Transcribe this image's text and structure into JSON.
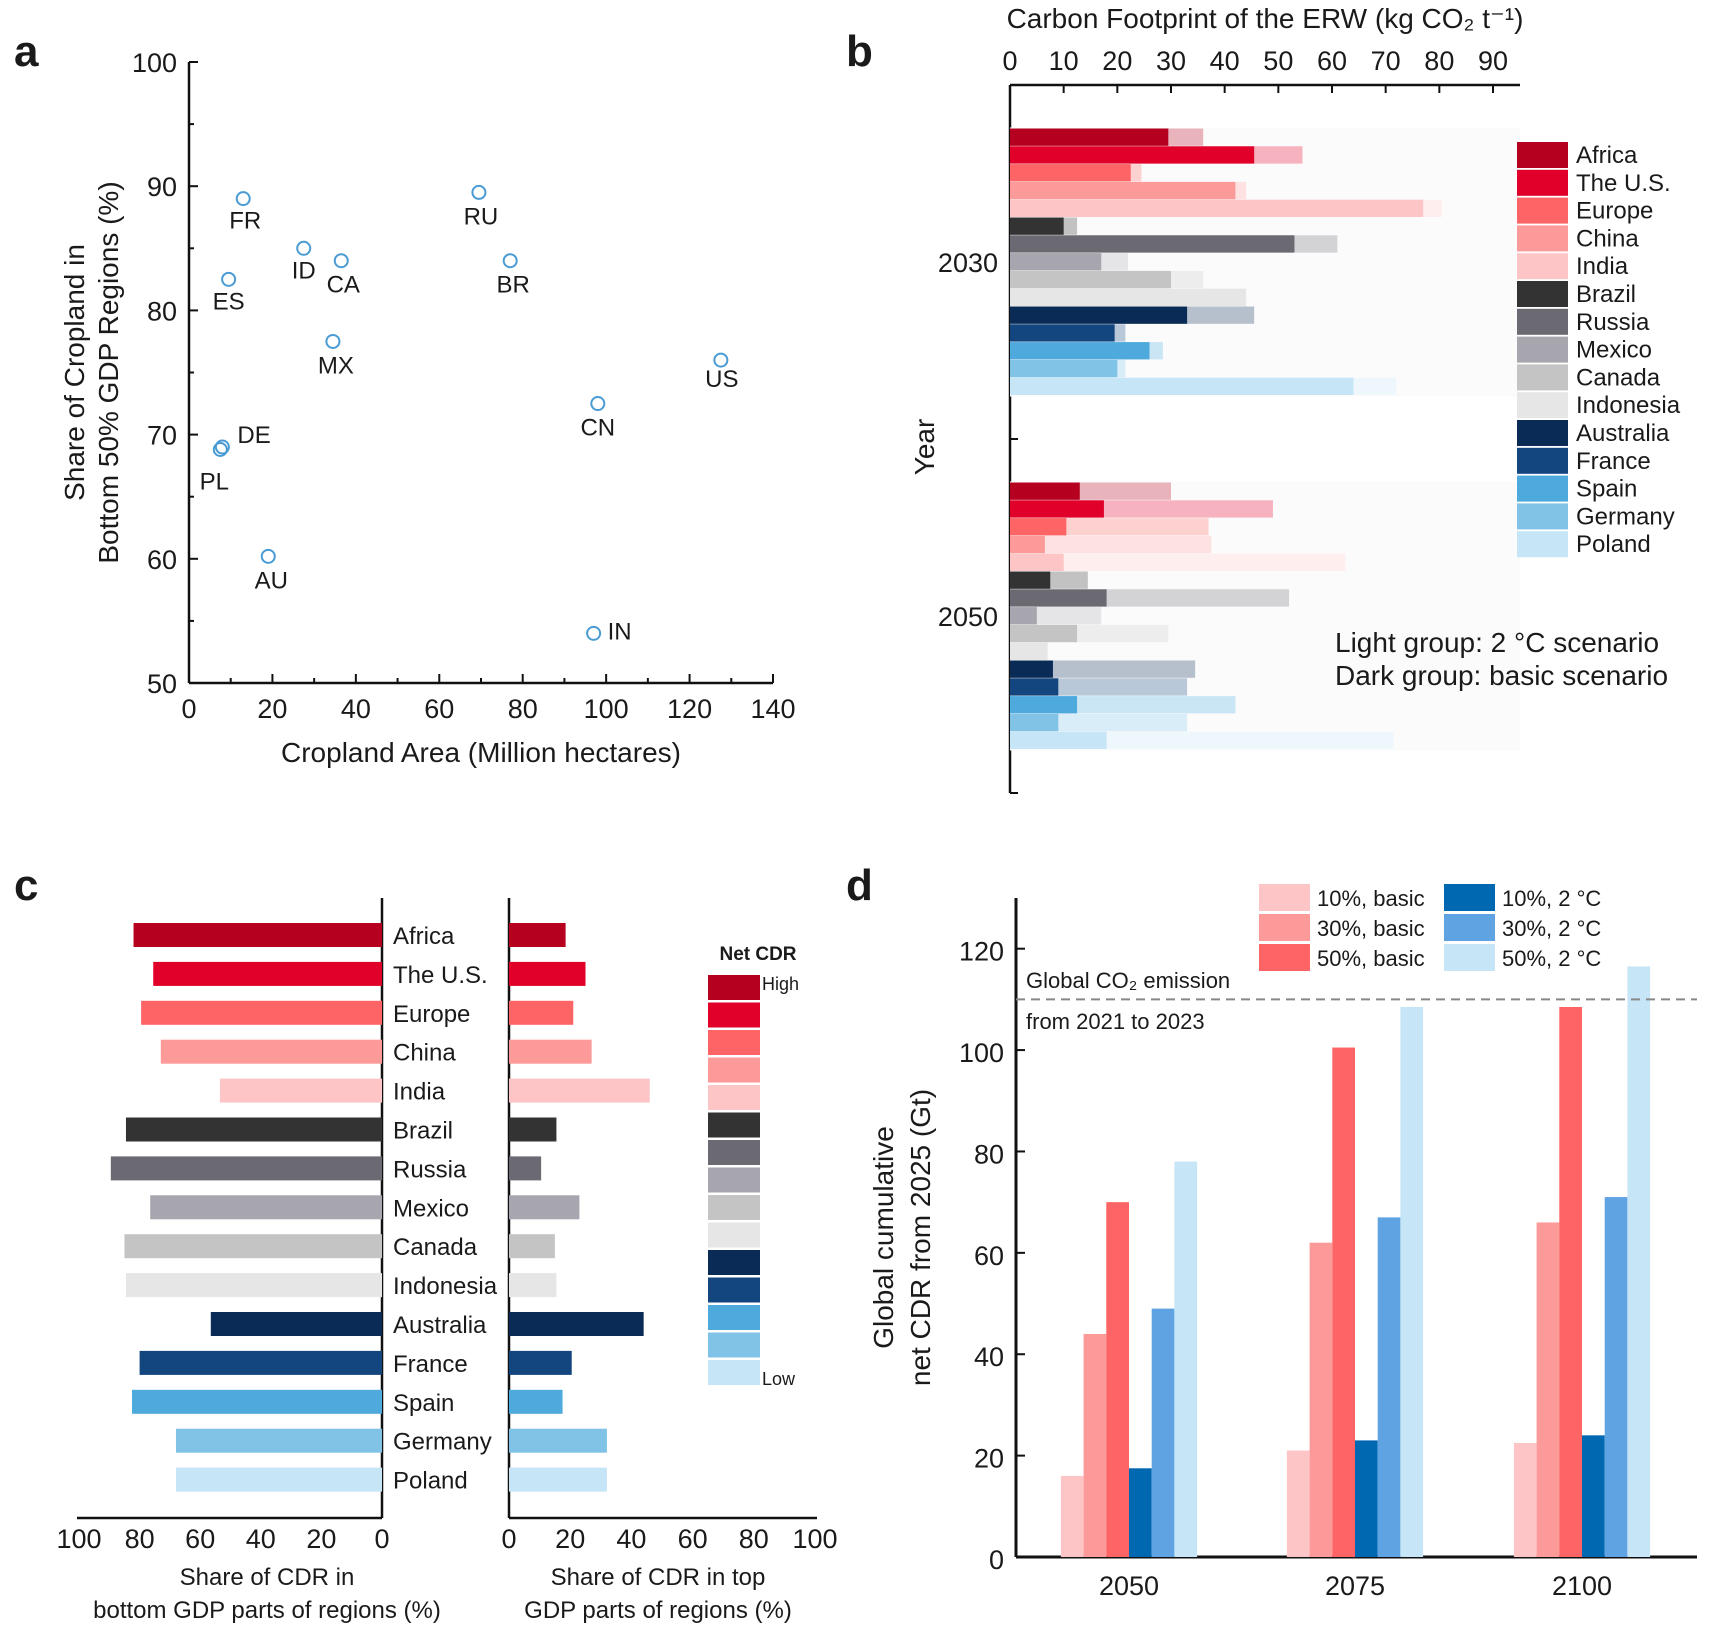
{
  "chart_data": [
    {
      "panel": "a",
      "type": "scatter",
      "xlabel": "Cropland Area (Million hectares)",
      "ylabel": [
        "Share of Cropland in",
        "Bottom 50% GDP Regions (%)"
      ],
      "xlim": [
        0,
        140
      ],
      "ylim": [
        50,
        100
      ],
      "xticks": [
        0,
        20,
        40,
        60,
        80,
        100,
        120,
        140
      ],
      "yticks": [
        50,
        60,
        70,
        80,
        90,
        100
      ],
      "marker_color": "#4a9bd4",
      "points": [
        {
          "label": "FR",
          "x": 13,
          "y": 89
        },
        {
          "label": "ES",
          "x": 9.5,
          "y": 82.5
        },
        {
          "label": "ID",
          "x": 27.5,
          "y": 85
        },
        {
          "label": "CA",
          "x": 36.5,
          "y": 84
        },
        {
          "label": "MX",
          "x": 34.5,
          "y": 77.5
        },
        {
          "label": "DE",
          "x": 8,
          "y": 69
        },
        {
          "label": "PL",
          "x": 7.5,
          "y": 68.8
        },
        {
          "label": "AU",
          "x": 19,
          "y": 60.2
        },
        {
          "label": "RU",
          "x": 69.5,
          "y": 89.5
        },
        {
          "label": "BR",
          "x": 77,
          "y": 84
        },
        {
          "label": "CN",
          "x": 98,
          "y": 72.5
        },
        {
          "label": "US",
          "x": 127.5,
          "y": 76
        },
        {
          "label": "IN",
          "x": 97,
          "y": 54
        }
      ]
    },
    {
      "panel": "b",
      "type": "bar",
      "orientation": "horizontal",
      "title": "Carbon Footprint of the ERW (kg CO₂ t⁻¹)",
      "ylabel": "Year",
      "xlim": [
        0,
        95
      ],
      "xticks": [
        0,
        10,
        20,
        30,
        40,
        50,
        60,
        70,
        80,
        90
      ],
      "ylim": [
        2020,
        2060
      ],
      "yticks": [
        "2030",
        "2050"
      ],
      "annotations": [
        "Light group: 2 °C scenario",
        "Dark group: basic scenario"
      ],
      "regions": [
        "Africa",
        "The U.S.",
        "Europe",
        "China",
        "India",
        "Brazil",
        "Russia",
        "Mexico",
        "Canada",
        "Indonesia",
        "Australia",
        "France",
        "Spain",
        "Germany",
        "Poland"
      ],
      "colors": [
        "#b5001f",
        "#e0002a",
        "#fd6465",
        "#fc9a9a",
        "#fec5c7",
        "#333333",
        "#6b6a72",
        "#a7a6ae",
        "#c4c4c4",
        "#e6e6e6",
        "#0a2b55",
        "#13467f",
        "#4eaadc",
        "#80c3e6",
        "#c6e5f6"
      ],
      "groups": [
        {
          "year": "2030",
          "basic": [
            29.5,
            45.5,
            22.5,
            42,
            77,
            10,
            53,
            17,
            30,
            44,
            33,
            19.5,
            26,
            20,
            64
          ],
          "two_degree": [
            36,
            54.5,
            24.5,
            44,
            80.5,
            12.5,
            61,
            22,
            36,
            44,
            45.5,
            21.5,
            28.5,
            21.5,
            72
          ]
        },
        {
          "year": "2050",
          "basic": [
            13,
            17.5,
            10.5,
            6.5,
            10,
            7.5,
            18,
            5,
            12.5,
            7,
            8,
            9,
            12.5,
            9,
            18
          ],
          "two_degree": [
            30,
            49,
            37,
            37.5,
            62.5,
            14.5,
            52,
            17,
            29.5,
            7,
            34.5,
            33,
            42,
            33,
            71.5
          ]
        }
      ]
    },
    {
      "panel": "c",
      "type": "bar",
      "orientation": "horizontal",
      "categories": [
        "Africa",
        "The U.S.",
        "Europe",
        "China",
        "India",
        "Brazil",
        "Russia",
        "Mexico",
        "Canada",
        "Indonesia",
        "Australia",
        "France",
        "Spain",
        "Germany",
        "Poland"
      ],
      "colors": [
        "#b5001f",
        "#e0002a",
        "#fd6465",
        "#fc9a9a",
        "#fec5c7",
        "#333333",
        "#6b6a72",
        "#a7a6ae",
        "#c4c4c4",
        "#e6e6e6",
        "#0a2b55",
        "#13467f",
        "#4eaadc",
        "#80c3e6",
        "#c6e5f6"
      ],
      "left": {
        "xlabel": [
          "Share of CDR in",
          "bottom GDP parts of regions (%)"
        ],
        "xlim": [
          100,
          0
        ],
        "xticks": [
          100,
          80,
          60,
          40,
          20,
          0
        ],
        "values": [
          82,
          75.5,
          79.5,
          73,
          53.5,
          84.5,
          89.5,
          76.5,
          85,
          84.5,
          56.5,
          80,
          82.5,
          68,
          68
        ]
      },
      "right": {
        "xlabel": [
          "Share of CDR in top",
          "GDP parts of regions (%)"
        ],
        "xlim": [
          0,
          100
        ],
        "xticks": [
          0,
          20,
          40,
          60,
          80,
          100
        ],
        "values": [
          18.5,
          25,
          21,
          27,
          46,
          15.5,
          10.5,
          23,
          15,
          15.5,
          44,
          20.5,
          17.5,
          32,
          32
        ]
      },
      "legend": {
        "title": "Net CDR",
        "high": "High",
        "low": "Low"
      }
    },
    {
      "panel": "d",
      "type": "bar",
      "categories": [
        "2050",
        "2075",
        "2100"
      ],
      "ylabel": [
        "Global cumulative",
        "net CDR from 2025 (Gt)"
      ],
      "ylim": [
        0,
        130
      ],
      "yticks": [
        0,
        20,
        40,
        60,
        80,
        100,
        120
      ],
      "reference_line": {
        "value": 110,
        "style": "dashed",
        "label": [
          "Global CO₂ emission",
          "from 2021 to 2023"
        ]
      },
      "legend_placement": "top",
      "series": [
        {
          "name": "10%, basic",
          "color": "#fec5c7",
          "values": [
            16,
            21,
            22.5
          ]
        },
        {
          "name": "30%, basic",
          "color": "#fc9a9a",
          "values": [
            44,
            62,
            66
          ]
        },
        {
          "name": "50%, basic",
          "color": "#fd6465",
          "values": [
            70,
            100.5,
            108.5
          ]
        },
        {
          "name": "10%, 2 °C",
          "color": "#0067b1",
          "values": [
            17.5,
            23,
            24
          ]
        },
        {
          "name": "30%, 2 °C",
          "color": "#5fa3e3",
          "values": [
            49,
            67,
            71
          ]
        },
        {
          "name": "50%, 2 °C",
          "color": "#c6e5f6",
          "values": [
            78,
            108.5,
            116.5
          ]
        }
      ]
    }
  ],
  "panel_letters": [
    "a",
    "b",
    "c",
    "d"
  ]
}
